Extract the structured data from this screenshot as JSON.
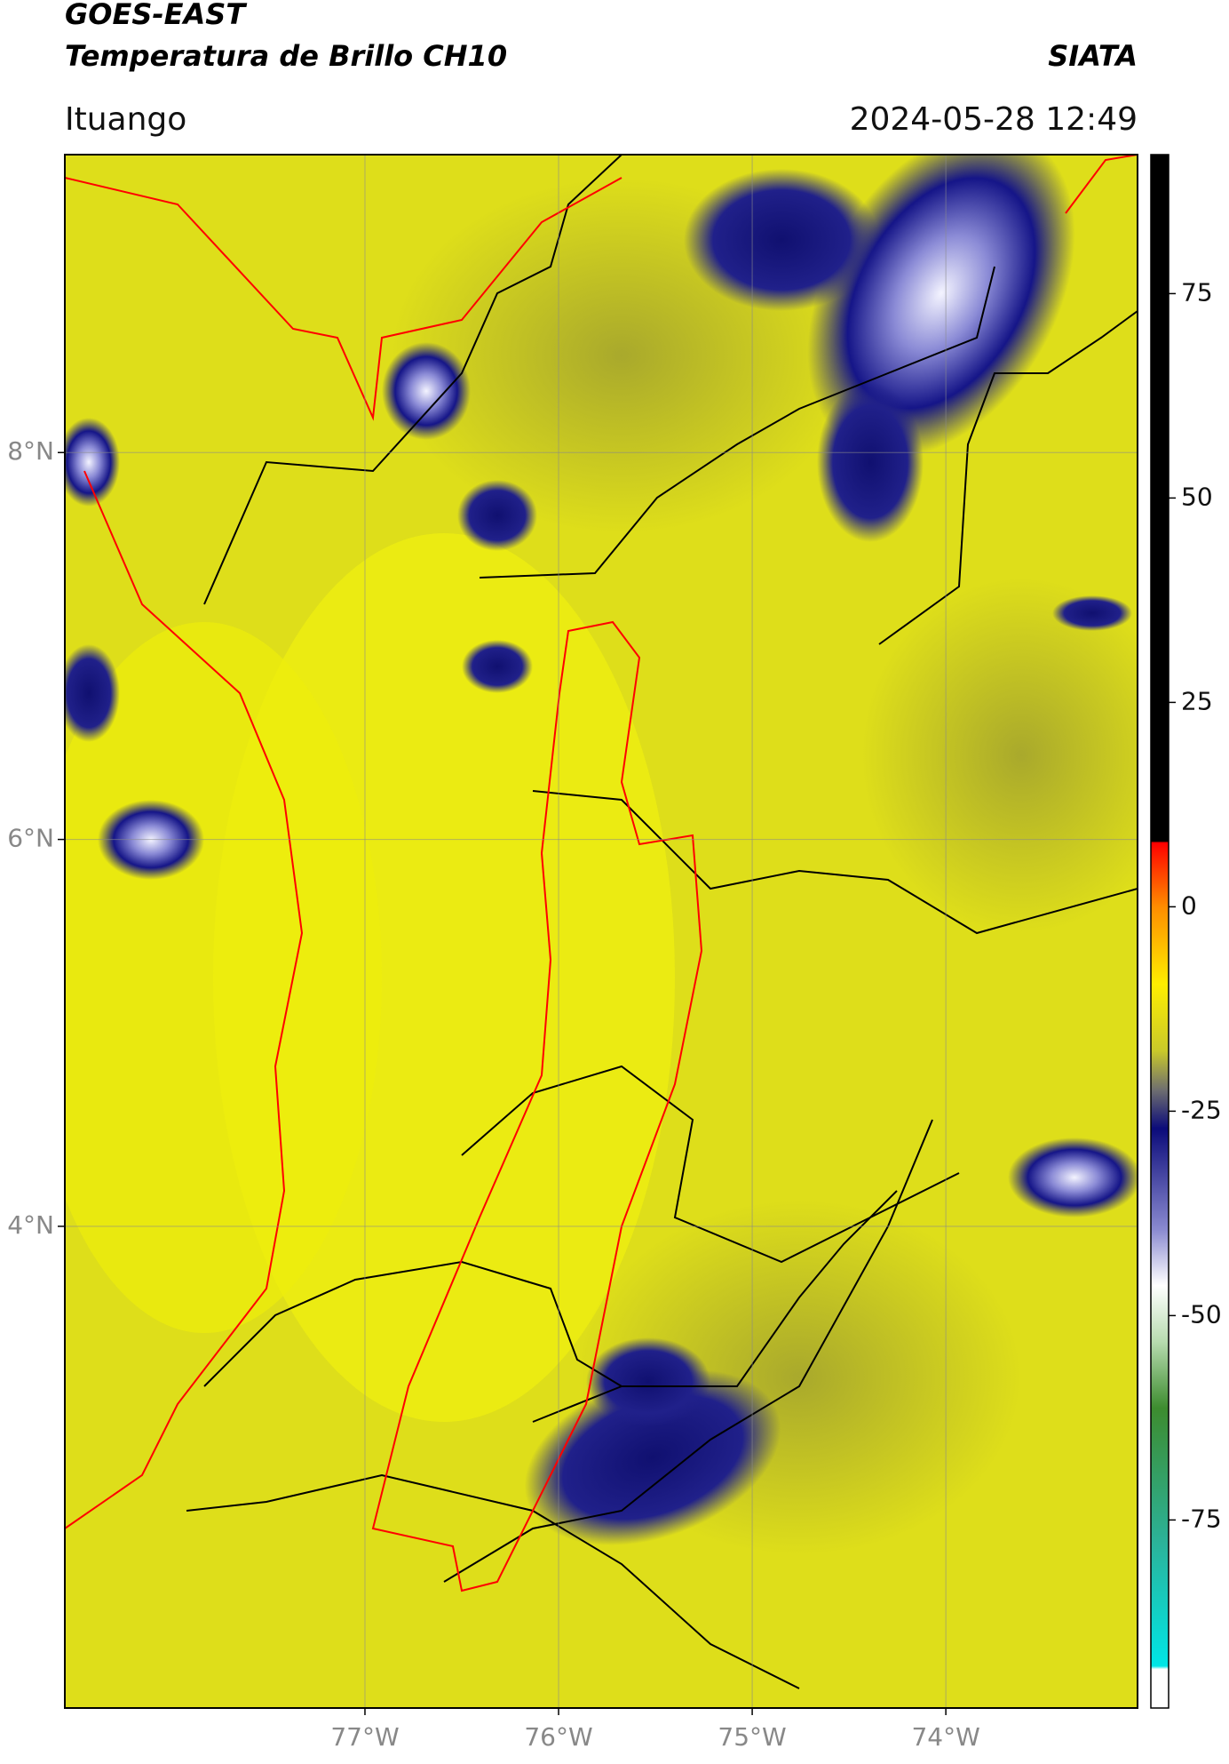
{
  "header": {
    "title": "GOES-EAST",
    "subtitle": "Temperatura de Brillo CH10",
    "source": "SIATA",
    "location": "Ituango",
    "datetime": "2024-05-28 12:49"
  },
  "map": {
    "xlim": [
      -78.55,
      -73.01
    ],
    "ylim": [
      1.51,
      9.54
    ],
    "xticks": [
      {
        "value": -77,
        "label": "77°W"
      },
      {
        "value": -76,
        "label": "76°W"
      },
      {
        "value": -75,
        "label": "75°W"
      },
      {
        "value": -74,
        "label": "74°W"
      }
    ],
    "yticks": [
      {
        "value": 8,
        "label": "8°N"
      },
      {
        "value": 6,
        "label": "6°N"
      },
      {
        "value": 4,
        "label": "4°N"
      }
    ],
    "grid": true
  },
  "colorbar": {
    "ylim": [
      -98,
      92
    ],
    "yticks": [
      75,
      50,
      25,
      0,
      -25,
      -50,
      -75
    ]
  }
}
